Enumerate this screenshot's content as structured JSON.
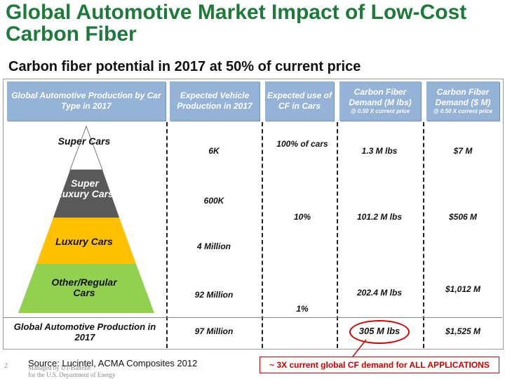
{
  "title": "Global Automotive Market Impact of Low-Cost Carbon Fiber",
  "subtitle": "Carbon fiber potential in 2017 at 50% of current price",
  "headers": [
    {
      "text": "Global Automotive Production by Car Type in 2017",
      "sub": ""
    },
    {
      "text": "Expected Vehicle Production in 2017",
      "sub": ""
    },
    {
      "text": "Expected use of CF in Cars",
      "sub": ""
    },
    {
      "text": "Carbon Fiber Demand (M lbs)",
      "sub": "@ 0.50 X current price"
    },
    {
      "text": "Carbon Fiber Demand ($ M)",
      "sub": "@ 0.50 X current price"
    }
  ],
  "pyramid": [
    "Super Cars",
    "Super Luxury Cars",
    "Luxury Cars",
    "Other/Regular Cars"
  ],
  "pyramid_colors": [
    "#ffffff",
    "#595959",
    "#ffc000",
    "#92d050"
  ],
  "production": [
    "6K",
    "600K",
    "4 Million",
    "92 Million"
  ],
  "cf_use": [
    "100% of cars",
    "10%",
    "1%"
  ],
  "cf_demand_lbs": [
    "1.3 M lbs",
    "101.2 M lbs",
    "202.4 M lbs"
  ],
  "cf_demand_usd": [
    "$7 M",
    "$506 M",
    "$1,012 M"
  ],
  "total": {
    "label": "Global Automotive Production in 2017",
    "production": "97 Million",
    "cf_lbs": "305 M lbs",
    "cf_usd": "$1,525 M"
  },
  "source": "Source: Lucintel, ACMA Composites 2012",
  "note": "~ 3X current global CF demand for ALL APPLICATIONS",
  "slide_number": "2",
  "footer_line1": "Managed by UT-Battelle",
  "footer_line2": "for the U.S. Department of Energy"
}
